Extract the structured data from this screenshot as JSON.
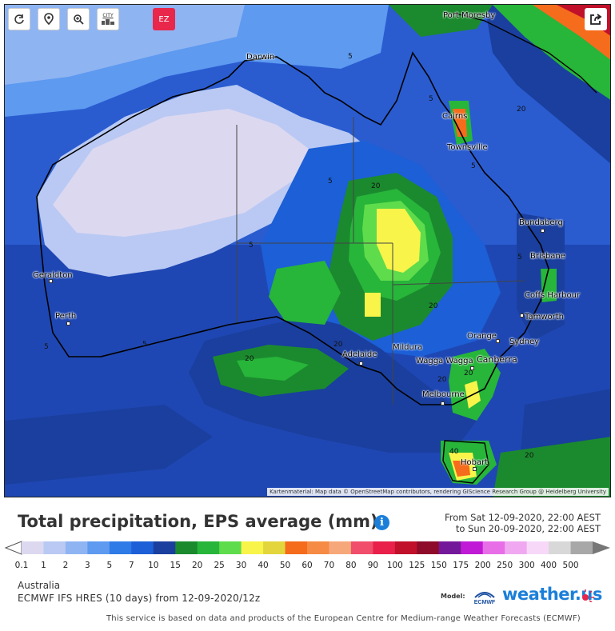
{
  "toolbar": {
    "refresh_icon": "refresh-icon",
    "location_icon": "location-pin-icon",
    "zoom_icon": "zoom-in-icon",
    "city_label": "CITY",
    "ez_label": "EZ",
    "share_icon": "share-icon"
  },
  "map": {
    "cities": [
      {
        "name": "Port Moresby"
      },
      {
        "name": "Darwin"
      },
      {
        "name": "Cairns"
      },
      {
        "name": "Townsville"
      },
      {
        "name": "Bundaberg"
      },
      {
        "name": "Brisbane"
      },
      {
        "name": "Coffs Harbour"
      },
      {
        "name": "Tamworth"
      },
      {
        "name": "Orange"
      },
      {
        "name": "Sydney"
      },
      {
        "name": "Canberra"
      },
      {
        "name": "Wagga Wagga"
      },
      {
        "name": "Mildura"
      },
      {
        "name": "Adelaide"
      },
      {
        "name": "Melbourne"
      },
      {
        "name": "Hobart"
      },
      {
        "name": "Geraldton"
      },
      {
        "name": "Perth"
      }
    ],
    "contour_labels": [
      "5",
      "5",
      "5",
      "5",
      "5",
      "5",
      "5",
      "5",
      "20",
      "20",
      "20",
      "20",
      "20",
      "20",
      "20",
      "20",
      "40"
    ],
    "attribution": "Kartenmaterial: Map data © OpenStreetMap contributors, rendering GIScience Research Group @ Heidelberg University"
  },
  "title": "Total precipitation, EPS average (mm)",
  "time_range": {
    "from": "From Sat 12-09-2020, 22:00 AEST",
    "to": "to Sun 20-09-2020, 22:00 AEST"
  },
  "scale": {
    "labels": [
      "0.1",
      "1",
      "2",
      "3",
      "5",
      "7",
      "10",
      "15",
      "20",
      "25",
      "30",
      "40",
      "50",
      "60",
      "70",
      "80",
      "90",
      "100",
      "125",
      "150",
      "175",
      "200",
      "250",
      "300",
      "400",
      "500"
    ],
    "colors": [
      "#dcd8f0",
      "#b9c9f3",
      "#8fb4f2",
      "#5d9af0",
      "#2e7be8",
      "#1c5fd6",
      "#1a3f9e",
      "#1b8a2e",
      "#27b53a",
      "#5fdc4b",
      "#f8f44a",
      "#e2d63c",
      "#f56c1c",
      "#f58b45",
      "#f7a87a",
      "#f04e6a",
      "#e8204a",
      "#c0102a",
      "#8e0b2a",
      "#74189a",
      "#c01ad6",
      "#e86ee8",
      "#f0a8f0",
      "#f8d8f8",
      "#d8d8d8",
      "#a8a8a8"
    ]
  },
  "region": "Australia",
  "model_run": "ECMWF IFS HRES  (10 days)  from 12-09-2020/12z",
  "model_label": "Model:",
  "ecmwf_label": "ECMWF",
  "brand": "weather.us",
  "footer": "This service is based on data and products of the European Centre for Medium-range Weather Forecasts (ECMWF)"
}
